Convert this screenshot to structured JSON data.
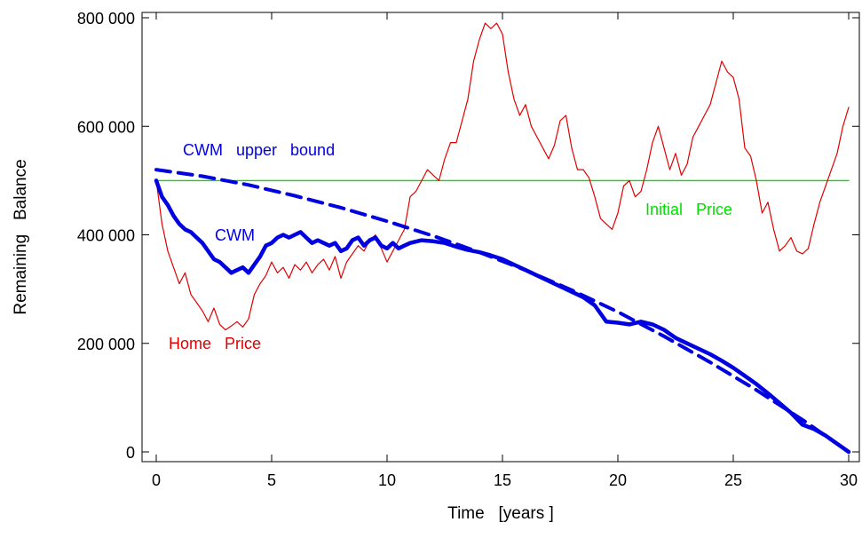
{
  "chart_data": {
    "type": "line",
    "xlabel": "Time   [years ]",
    "ylabel": "Remaining   Balance",
    "xlim": [
      0,
      30
    ],
    "ylim": [
      0,
      800000
    ],
    "xticks": [
      0,
      5,
      10,
      15,
      20,
      25,
      30
    ],
    "xtick_labels": [
      "0",
      "5",
      "10",
      "15",
      "20",
      "25",
      "30"
    ],
    "yticks": [
      0,
      200000,
      400000,
      600000,
      800000
    ],
    "ytick_labels": [
      "0",
      "200 000",
      "400 000",
      "600 000",
      "800 000"
    ],
    "grid": false,
    "colors": {
      "home_price": "#e00000",
      "cwm": "#0000e0",
      "upper_bound": "#0000e0",
      "initial_price": "#00e000"
    },
    "annotations": {
      "upper_bound": "CWM   upper   bound",
      "cwm": "CWM",
      "initial_price": "Initial   Price",
      "home_price": "Home   Price"
    },
    "series": [
      {
        "key": "home_price",
        "x": [
          0,
          0.25,
          0.5,
          0.75,
          1,
          1.25,
          1.5,
          1.75,
          2,
          2.25,
          2.5,
          2.75,
          3,
          3.25,
          3.5,
          3.75,
          4,
          4.25,
          4.5,
          4.75,
          5,
          5.25,
          5.5,
          5.75,
          6,
          6.25,
          6.5,
          6.75,
          7,
          7.25,
          7.5,
          7.75,
          8,
          8.25,
          8.5,
          8.75,
          9,
          9.25,
          9.5,
          9.75,
          10,
          10.25,
          10.5,
          10.75,
          11,
          11.25,
          11.5,
          11.75,
          12,
          12.25,
          12.5,
          12.75,
          13,
          13.25,
          13.5,
          13.75,
          14,
          14.25,
          14.5,
          14.75,
          15,
          15.25,
          15.5,
          15.75,
          16,
          16.25,
          16.5,
          16.75,
          17,
          17.25,
          17.5,
          17.75,
          18,
          18.25,
          18.5,
          18.75,
          19,
          19.25,
          19.5,
          19.75,
          20,
          20.25,
          20.5,
          20.75,
          21,
          21.25,
          21.5,
          21.75,
          22,
          22.25,
          22.5,
          22.75,
          23,
          23.25,
          23.5,
          23.75,
          24,
          24.25,
          24.5,
          24.75,
          25,
          25.25,
          25.5,
          25.75,
          26,
          26.25,
          26.5,
          26.75,
          27,
          27.25,
          27.5,
          27.75,
          28,
          28.25,
          28.5,
          28.75,
          29,
          29.25,
          29.5,
          29.75,
          30
        ],
        "values": [
          500000,
          420000,
          370000,
          340000,
          310000,
          330000,
          290000,
          275000,
          260000,
          240000,
          265000,
          235000,
          225000,
          232000,
          240000,
          230000,
          245000,
          290000,
          310000,
          325000,
          350000,
          330000,
          340000,
          320000,
          345000,
          335000,
          350000,
          330000,
          345000,
          355000,
          335000,
          360000,
          320000,
          350000,
          365000,
          380000,
          370000,
          390000,
          400000,
          375000,
          350000,
          370000,
          390000,
          410000,
          470000,
          480000,
          500000,
          520000,
          510000,
          500000,
          540000,
          570000,
          570000,
          610000,
          650000,
          720000,
          760000,
          790000,
          780000,
          790000,
          770000,
          700000,
          650000,
          620000,
          640000,
          600000,
          580000,
          560000,
          540000,
          565000,
          610000,
          620000,
          560000,
          520000,
          520000,
          505000,
          470000,
          430000,
          420000,
          410000,
          440000,
          490000,
          500000,
          470000,
          480000,
          520000,
          570000,
          600000,
          560000,
          520000,
          550000,
          510000,
          530000,
          580000,
          600000,
          620000,
          640000,
          680000,
          720000,
          700000,
          690000,
          650000,
          560000,
          545000,
          500000,
          440000,
          460000,
          410000,
          370000,
          380000,
          395000,
          370000,
          365000,
          375000,
          420000,
          460000,
          490000,
          520000,
          550000,
          600000,
          635000
        ]
      },
      {
        "key": "cwm",
        "x": [
          0,
          0.25,
          0.5,
          0.75,
          1,
          1.25,
          1.5,
          1.75,
          2,
          2.25,
          2.5,
          2.75,
          3,
          3.25,
          3.5,
          3.75,
          4,
          4.25,
          4.5,
          4.75,
          5,
          5.25,
          5.5,
          5.75,
          6,
          6.25,
          6.5,
          6.75,
          7,
          7.25,
          7.5,
          7.75,
          8,
          8.25,
          8.5,
          8.75,
          9,
          9.25,
          9.5,
          9.75,
          10,
          10.25,
          10.5,
          10.75,
          11,
          11.5,
          12,
          12.5,
          13,
          13.5,
          14,
          14.5,
          15,
          15.5,
          16,
          16.5,
          17,
          17.5,
          18,
          18.5,
          19,
          19.5,
          20,
          20.5,
          21,
          21.5,
          22,
          22.5,
          23,
          23.5,
          24,
          24.5,
          25,
          25.5,
          26,
          26.5,
          27,
          27.5,
          28,
          28.5,
          29,
          29.5,
          30
        ],
        "values": [
          500000,
          470000,
          455000,
          435000,
          420000,
          410000,
          405000,
          395000,
          385000,
          370000,
          355000,
          350000,
          340000,
          330000,
          335000,
          340000,
          330000,
          345000,
          360000,
          380000,
          385000,
          395000,
          400000,
          395000,
          400000,
          405000,
          395000,
          385000,
          390000,
          385000,
          380000,
          385000,
          370000,
          375000,
          390000,
          395000,
          380000,
          390000,
          395000,
          380000,
          375000,
          385000,
          375000,
          380000,
          385000,
          390000,
          388000,
          385000,
          378000,
          372000,
          368000,
          362000,
          355000,
          345000,
          335000,
          325000,
          315000,
          305000,
          295000,
          285000,
          270000,
          240000,
          238000,
          235000,
          240000,
          235000,
          225000,
          210000,
          200000,
          190000,
          180000,
          168000,
          155000,
          140000,
          125000,
          108000,
          90000,
          72000,
          50000,
          42000,
          30000,
          15000,
          0
        ]
      },
      {
        "key": "upper_bound",
        "x": [
          0,
          2,
          4,
          6,
          8,
          10,
          12,
          14,
          16,
          18,
          20,
          22,
          24,
          26,
          28,
          30
        ],
        "values": [
          520000,
          508000,
          492000,
          472000,
          450000,
          425000,
          398000,
          368000,
          335000,
          298000,
          258000,
          213000,
          165000,
          114000,
          59000,
          0
        ],
        "style": "dashed"
      },
      {
        "key": "initial_price",
        "x": [
          0,
          30
        ],
        "values": [
          500000,
          500000
        ]
      }
    ]
  }
}
